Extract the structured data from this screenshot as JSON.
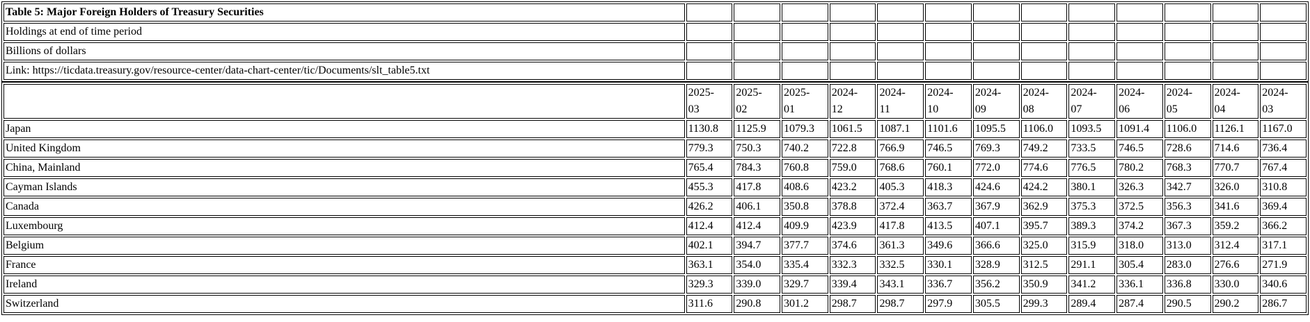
{
  "colors": {
    "background": "#ffffff",
    "text": "#000000",
    "grid_border": "#000000"
  },
  "chart_data": {
    "type": "table",
    "title": "Table 5: Major Foreign Holders of Treasury Securities",
    "subtitle_rows": [
      "Holdings at end of time period",
      "Billions of dollars",
      "Link: https://ticdata.treasury.gov/resource-center/data-chart-center/tic/Documents/slt_table5.txt"
    ],
    "units": "Billions of dollars",
    "columns": [
      "2025-03",
      "2025-02",
      "2025-01",
      "2024-12",
      "2024-11",
      "2024-10",
      "2024-09",
      "2024-08",
      "2024-07",
      "2024-06",
      "2024-05",
      "2024-04",
      "2024-03"
    ],
    "rows": [
      {
        "country": "Japan",
        "values": [
          "1130.8",
          "1125.9",
          "1079.3",
          "1061.5",
          "1087.1",
          "1101.6",
          "1095.5",
          "1106.0",
          "1093.5",
          "1091.4",
          "1106.0",
          "1126.1",
          "1167.0"
        ]
      },
      {
        "country": "United Kingdom",
        "values": [
          "779.3",
          "750.3",
          "740.2",
          "722.8",
          "766.9",
          "746.5",
          "769.3",
          "749.2",
          "733.5",
          "746.5",
          "728.6",
          "714.6",
          "736.4"
        ]
      },
      {
        "country": "China, Mainland",
        "values": [
          "765.4",
          "784.3",
          "760.8",
          "759.0",
          "768.6",
          "760.1",
          "772.0",
          "774.6",
          "776.5",
          "780.2",
          "768.3",
          "770.7",
          "767.4"
        ]
      },
      {
        "country": "Cayman Islands",
        "values": [
          "455.3",
          "417.8",
          "408.6",
          "423.2",
          "405.3",
          "418.3",
          "424.6",
          "424.2",
          "380.1",
          "326.3",
          "342.7",
          "326.0",
          "310.8"
        ]
      },
      {
        "country": "Canada",
        "values": [
          "426.2",
          "406.1",
          "350.8",
          "378.8",
          "372.4",
          "363.7",
          "367.9",
          "362.9",
          "375.3",
          "372.5",
          "356.3",
          "341.6",
          "369.4"
        ]
      },
      {
        "country": "Luxembourg",
        "values": [
          "412.4",
          "412.4",
          "409.9",
          "423.9",
          "417.8",
          "413.5",
          "407.1",
          "395.7",
          "389.3",
          "374.2",
          "367.3",
          "359.2",
          "366.2"
        ]
      },
      {
        "country": "Belgium",
        "values": [
          "402.1",
          "394.7",
          "377.7",
          "374.6",
          "361.3",
          "349.6",
          "366.6",
          "325.0",
          "315.9",
          "318.0",
          "313.0",
          "312.4",
          "317.1"
        ]
      },
      {
        "country": "France",
        "values": [
          "363.1",
          "354.0",
          "335.4",
          "332.3",
          "332.5",
          "330.1",
          "328.9",
          "312.5",
          "291.1",
          "305.4",
          "283.0",
          "276.6",
          "271.9"
        ]
      },
      {
        "country": "Ireland",
        "values": [
          "329.3",
          "339.0",
          "329.7",
          "339.4",
          "343.1",
          "336.7",
          "356.2",
          "350.9",
          "341.2",
          "336.1",
          "336.8",
          "330.0",
          "340.6"
        ]
      },
      {
        "country": "Switzerland",
        "values": [
          "311.6",
          "290.8",
          "301.2",
          "298.7",
          "298.7",
          "297.9",
          "305.5",
          "299.3",
          "289.4",
          "287.4",
          "290.5",
          "290.2",
          "286.7"
        ]
      }
    ]
  }
}
